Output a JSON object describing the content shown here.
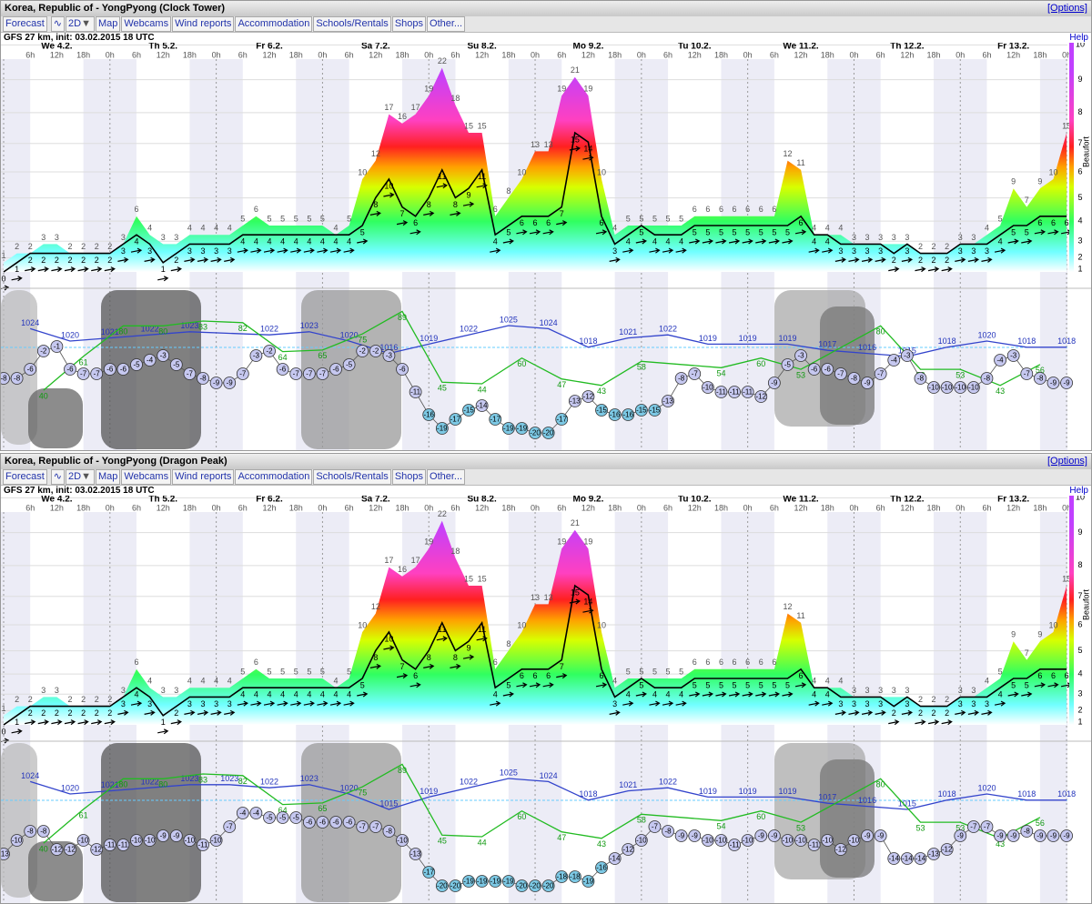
{
  "panels": [
    {
      "title": "Korea, Republic of - YongPyong (Clock Tower)",
      "options": "[Options]",
      "nav": [
        "Forecast",
        "2D",
        "Map",
        "Webcams",
        "Wind reports",
        "Accommodation",
        "Schools/Rentals",
        "Shops",
        "Other..."
      ],
      "init": "GFS 27 km, init: 03.02.2015 18 UTC",
      "help": "Help",
      "beaufort_title": "Beaufort",
      "beaufort": [
        1,
        2,
        3,
        4,
        5,
        6,
        7,
        8,
        9,
        10
      ],
      "days": [
        "We 4.2.",
        "Th 5.2.",
        "Fr 6.2.",
        "Sa 7.2.",
        "Su 8.2.",
        "Mo 9.2.",
        "Tu 10.2.",
        "We 11.2.",
        "Th 12.2.",
        "Fr 13.2."
      ],
      "hours": [
        "6h",
        "12h",
        "18h",
        "0h",
        "6h",
        "12h",
        "18h",
        "0h",
        "6h",
        "12h",
        "18h",
        "0h",
        "6h",
        "12h",
        "18h",
        "0h",
        "6h",
        "12h",
        "18h",
        "0h",
        "6h",
        "12h",
        "18h",
        "0h",
        "6h",
        "12h",
        "18h",
        "0h",
        "6h",
        "12h",
        "18h",
        "0h",
        "6h",
        "12h",
        "18h",
        "0h",
        "6h",
        "12h",
        "18h",
        "0h"
      ],
      "wind": {
        "gust": [
          1,
          2,
          2,
          3,
          3,
          2,
          2,
          2,
          2,
          3,
          6,
          4,
          3,
          3,
          4,
          4,
          4,
          4,
          5,
          6,
          5,
          5,
          5,
          5,
          5,
          4,
          5,
          10,
          12,
          17,
          16,
          17,
          19,
          22,
          18,
          15,
          15,
          6,
          8,
          10,
          13,
          13,
          19,
          21,
          19,
          10,
          4,
          5,
          5,
          5,
          5,
          5,
          6,
          6,
          6,
          6,
          6,
          6,
          6,
          12,
          11,
          4,
          4,
          4,
          3,
          3,
          3,
          3,
          3,
          2,
          2,
          2,
          3,
          3,
          4,
          5,
          9,
          7,
          9,
          10,
          15
        ],
        "mean": [
          0,
          1,
          2,
          2,
          2,
          2,
          2,
          2,
          2,
          3,
          4,
          3,
          1,
          2,
          3,
          3,
          3,
          3,
          4,
          4,
          4,
          4,
          4,
          4,
          4,
          4,
          4,
          5,
          8,
          10,
          7,
          6,
          8,
          11,
          8,
          9,
          11,
          4,
          5,
          6,
          6,
          6,
          7,
          15,
          14,
          6,
          3,
          4,
          5,
          4,
          4,
          4,
          5,
          5,
          5,
          5,
          5,
          5,
          5,
          5,
          6,
          4,
          4,
          3,
          3,
          3,
          3,
          2,
          3,
          2,
          2,
          2,
          3,
          3,
          3,
          4,
          5,
          5,
          6,
          6,
          6
        ]
      },
      "temperature": [
        -8,
        -8,
        -6,
        -2,
        -1,
        -6,
        -7,
        -7,
        -6,
        -6,
        -5,
        -4,
        -3,
        -5,
        -7,
        -8,
        -9,
        -9,
        -7,
        -3,
        -2,
        -6,
        -7,
        -7,
        -7,
        -6,
        -5,
        -2,
        -2,
        -3,
        -6,
        -11,
        -16,
        -19,
        -17,
        -15,
        -14,
        -17,
        -19,
        -19,
        -20,
        -20,
        -17,
        -13,
        -12,
        -15,
        -16,
        -16,
        -15,
        -15,
        -13,
        -8,
        -7,
        -10,
        -11,
        -11,
        -11,
        -12,
        -9,
        -5,
        -3,
        -6,
        -6,
        -7,
        -8,
        -9,
        -7,
        -4,
        -3,
        -8,
        -10,
        -10,
        -10,
        -10,
        -8,
        -4,
        -3,
        -7,
        -8,
        -9,
        -9
      ],
      "pressure": {
        "hours": [
          6,
          15,
          24,
          33,
          42,
          60,
          69,
          78,
          87,
          96,
          105,
          114,
          123,
          132,
          141,
          150,
          159,
          168,
          177,
          186,
          195,
          204,
          213,
          222,
          231,
          240
        ],
        "values": [
          1024,
          1020,
          1021,
          1022,
          1023,
          1022,
          1023,
          1020,
          1016,
          1019,
          1022,
          1025,
          1024,
          1018,
          1021,
          1022,
          1019,
          1019,
          1019,
          1017,
          1016,
          1015,
          1018,
          1020,
          1018,
          1018
        ]
      },
      "humidity": {
        "hours": [
          9,
          18,
          27,
          36,
          45,
          54,
          63,
          72,
          81,
          90,
          99,
          108,
          117,
          126,
          135,
          144,
          162,
          171,
          180,
          198,
          207,
          216,
          225,
          234
        ],
        "values": [
          40,
          61,
          80,
          80,
          83,
          82,
          64,
          65,
          75,
          89,
          45,
          44,
          60,
          47,
          43,
          58,
          54,
          60,
          53,
          80,
          53,
          53,
          43,
          56
        ]
      }
    },
    {
      "title": "Korea, Republic of - YongPyong (Dragon Peak)",
      "options": "[Options]",
      "nav": [
        "Forecast",
        "2D",
        "Map",
        "Webcams",
        "Wind reports",
        "Accommodation",
        "Schools/Rentals",
        "Shops",
        "Other..."
      ],
      "init": "GFS 27 km, init: 03.02.2015 18 UTC",
      "help": "Help",
      "beaufort_title": "Beaufort",
      "beaufort": [
        1,
        2,
        3,
        4,
        5,
        6,
        7,
        8,
        9,
        10
      ],
      "days": [
        "We 4.2.",
        "Th 5.2.",
        "Fr 6.2.",
        "Sa 7.2.",
        "Su 8.2.",
        "Mo 9.2.",
        "Tu 10.2.",
        "We 11.2.",
        "Th 12.2.",
        "Fr 13.2."
      ],
      "hours": [
        "6h",
        "12h",
        "18h",
        "0h",
        "6h",
        "12h",
        "18h",
        "0h",
        "6h",
        "12h",
        "18h",
        "0h",
        "6h",
        "12h",
        "18h",
        "0h",
        "6h",
        "12h",
        "18h",
        "0h",
        "6h",
        "12h",
        "18h",
        "0h",
        "6h",
        "12h",
        "18h",
        "0h",
        "6h",
        "12h",
        "18h",
        "0h",
        "6h",
        "12h",
        "18h",
        "0h",
        "6h",
        "12h",
        "18h",
        "0h"
      ],
      "wind": {
        "gust": [
          1,
          2,
          2,
          3,
          3,
          2,
          2,
          2,
          2,
          3,
          6,
          4,
          3,
          3,
          4,
          4,
          4,
          4,
          5,
          6,
          5,
          5,
          5,
          5,
          5,
          4,
          5,
          10,
          12,
          17,
          16,
          17,
          19,
          22,
          18,
          15,
          15,
          6,
          8,
          10,
          13,
          13,
          19,
          21,
          19,
          10,
          4,
          5,
          5,
          5,
          5,
          5,
          6,
          6,
          6,
          6,
          6,
          6,
          6,
          12,
          11,
          4,
          4,
          4,
          3,
          3,
          3,
          3,
          3,
          2,
          2,
          2,
          3,
          3,
          4,
          5,
          9,
          7,
          9,
          10,
          15
        ],
        "mean": [
          0,
          1,
          2,
          2,
          2,
          2,
          2,
          2,
          2,
          3,
          4,
          3,
          1,
          2,
          3,
          3,
          3,
          3,
          4,
          4,
          4,
          4,
          4,
          4,
          4,
          4,
          4,
          5,
          8,
          10,
          7,
          6,
          8,
          11,
          8,
          9,
          11,
          4,
          5,
          6,
          6,
          6,
          7,
          15,
          14,
          6,
          3,
          4,
          5,
          4,
          4,
          4,
          5,
          5,
          5,
          5,
          5,
          5,
          5,
          5,
          6,
          4,
          4,
          3,
          3,
          3,
          3,
          2,
          3,
          2,
          2,
          2,
          3,
          3,
          3,
          4,
          5,
          5,
          6,
          6,
          6
        ]
      },
      "temperature": [
        -13,
        -10,
        -8,
        -8,
        -12,
        -12,
        -10,
        -12,
        -11,
        -11,
        -10,
        -10,
        -9,
        -9,
        -10,
        -11,
        -10,
        -7,
        -4,
        -4,
        -5,
        -5,
        -5,
        -6,
        -6,
        -6,
        -6,
        -7,
        -7,
        -8,
        -10,
        -13,
        -17,
        -20,
        -20,
        -19,
        -19,
        -19,
        -19,
        -20,
        -20,
        -20,
        -18,
        -18,
        -19,
        -16,
        -14,
        -12,
        -10,
        -7,
        -8,
        -9,
        -9,
        -10,
        -10,
        -11,
        -10,
        -9,
        -9,
        -10,
        -10,
        -11,
        -10,
        -12,
        -10,
        -9,
        -9,
        -14,
        -14,
        -14,
        -13,
        -12,
        -9,
        -7,
        -7,
        -9,
        -9,
        -8,
        -9,
        -9,
        -9
      ],
      "pressure": {
        "hours": [
          6,
          15,
          24,
          33,
          42,
          51,
          60,
          69,
          78,
          87,
          96,
          105,
          114,
          123,
          132,
          141,
          150,
          159,
          168,
          177,
          186,
          195,
          204,
          213,
          222,
          231,
          240
        ],
        "values": [
          1024,
          1020,
          1021,
          1022,
          1023,
          1023,
          1022,
          1023,
          1020,
          1015,
          1019,
          1022,
          1025,
          1024,
          1018,
          1021,
          1022,
          1019,
          1019,
          1019,
          1017,
          1016,
          1015,
          1018,
          1020,
          1018,
          1018
        ]
      },
      "humidity": {
        "hours": [
          9,
          18,
          27,
          36,
          45,
          54,
          63,
          72,
          81,
          90,
          99,
          108,
          117,
          126,
          135,
          144,
          162,
          171,
          180,
          198,
          207,
          216,
          225,
          234
        ],
        "values": [
          40,
          61,
          80,
          80,
          83,
          82,
          64,
          65,
          75,
          89,
          45,
          44,
          60,
          47,
          43,
          58,
          54,
          60,
          53,
          80,
          53,
          53,
          43,
          56
        ]
      }
    }
  ]
}
